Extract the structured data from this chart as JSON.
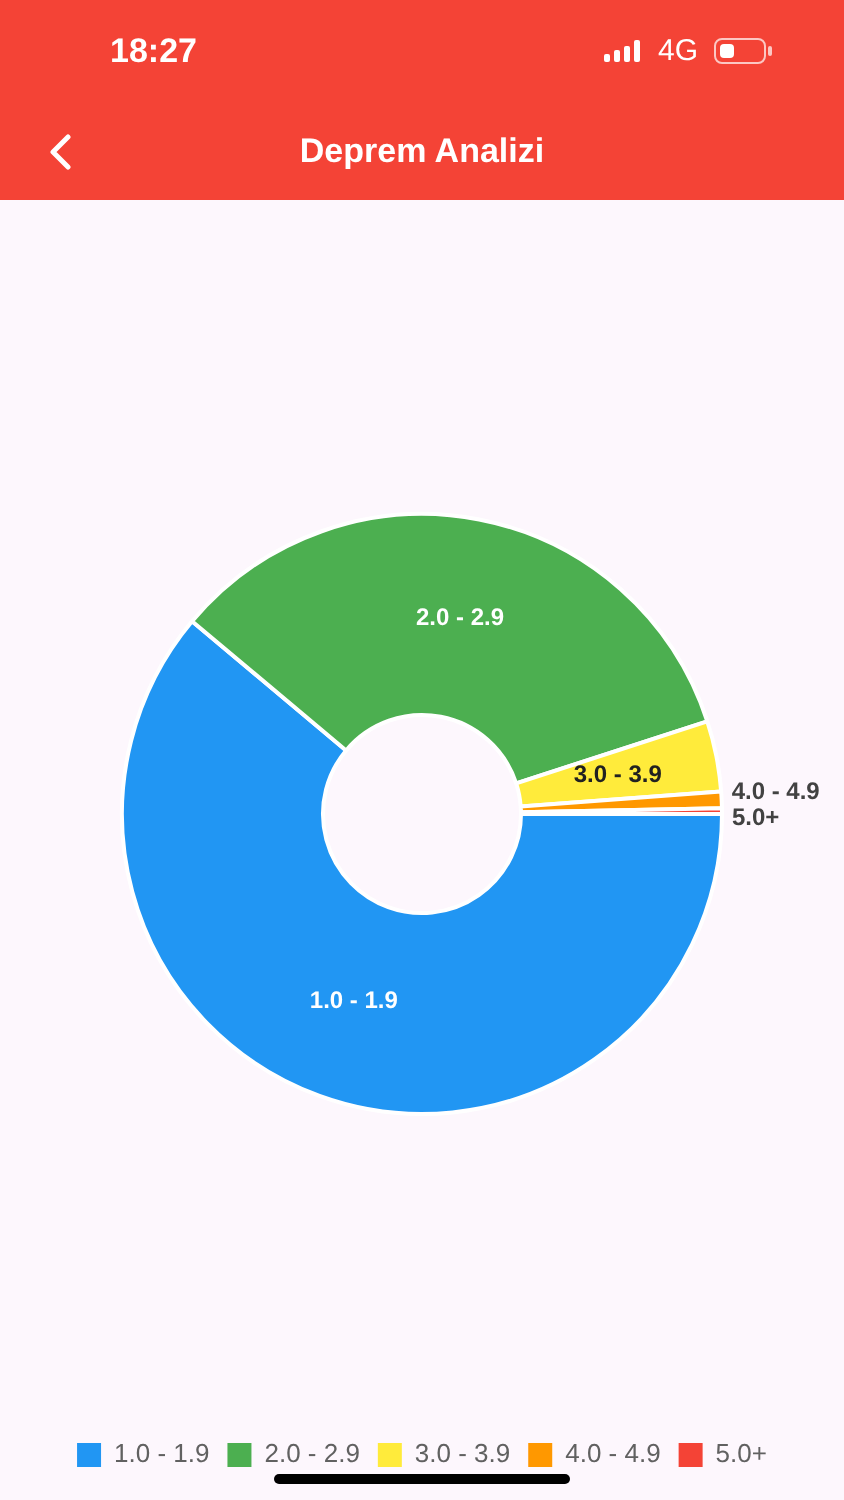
{
  "chart_data": {
    "type": "donut",
    "title": "Deprem Analizi",
    "categories": [
      "1.0 - 1.9",
      "2.0 - 2.9",
      "3.0 - 3.9",
      "4.0 - 4.9",
      "5.0+"
    ],
    "values": [
      61.1,
      33.9,
      3.8,
      0.9,
      0.3
    ],
    "colors": [
      "#2196f3",
      "#4caf50",
      "#ffeb3b",
      "#ff9800",
      "#f44336"
    ],
    "legend": "bottom",
    "annotations": [
      "18:27",
      "4G"
    ]
  }
}
